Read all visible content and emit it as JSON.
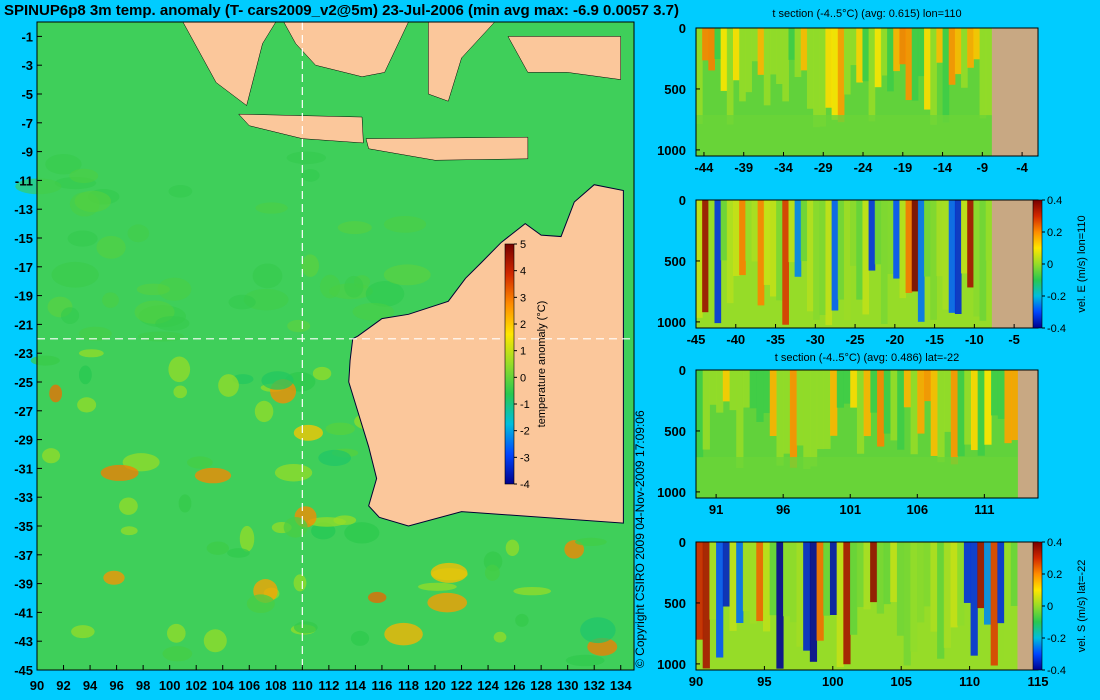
{
  "title": "SPINUP6p8 3m temp. anomaly (T- cars2009_v2@5m) 23-Jul-2006 (min avg max: -6.9 0.0057 3.7)",
  "copyright": "© Copyright CSIRO 2009   04-Nov-2009 17:09:06",
  "colors": {
    "background": "#00ccff",
    "land": "#fbc79b",
    "land_section": "#c8a883"
  },
  "chart_data": [
    {
      "type": "heatmap",
      "name": "map",
      "title": "",
      "xlabel": "",
      "ylabel": "",
      "xlim": [
        90,
        135
      ],
      "ylim": [
        -45,
        0
      ],
      "x_ticks": [
        "90",
        "92",
        "94",
        "96",
        "98",
        "100",
        "102",
        "104",
        "106",
        "108",
        "110",
        "112",
        "114",
        "116",
        "118",
        "120",
        "122",
        "124",
        "126",
        "128",
        "130",
        "132",
        "134"
      ],
      "y_ticks": [
        "-1",
        "-3",
        "-5",
        "-7",
        "-9",
        "-11",
        "-13",
        "-15",
        "-17",
        "-19",
        "-21",
        "-23",
        "-25",
        "-27",
        "-29",
        "-31",
        "-33",
        "-35",
        "-37",
        "-39",
        "-41",
        "-43",
        "-45"
      ],
      "section_lines": {
        "lon": 110,
        "lat": -22
      },
      "colorbar": {
        "label": "temperature anomaly (°C)",
        "min": -4,
        "max": 5,
        "ticks": [
          "5",
          "4",
          "3",
          "2",
          "1",
          "0",
          "-1",
          "-2",
          "-3",
          "-4"
        ]
      },
      "stats": {
        "min": -6.9,
        "avg": 0.0057,
        "max": 3.7
      }
    },
    {
      "type": "heatmap",
      "name": "t-section-lon110",
      "title": "t section (-4..5°C) (avg: 0.615) lon=110",
      "xlim": [
        -45,
        -2
      ],
      "ylim": [
        1050,
        0
      ],
      "x_ticks": [
        "-44",
        "-39",
        "-34",
        "-29",
        "-24",
        "-19",
        "-14",
        "-9",
        "-4"
      ],
      "y_ticks": [
        "0",
        "500",
        "1000"
      ],
      "land_start_x": -7.8
    },
    {
      "type": "heatmap",
      "name": "vel-e-section-lon110",
      "title": "",
      "xlim": [
        -45,
        -2
      ],
      "ylim": [
        1050,
        0
      ],
      "x_ticks": [
        "-45",
        "-40",
        "-35",
        "-30",
        "-25",
        "-20",
        "-15",
        "-10",
        "-5"
      ],
      "y_ticks": [
        "0",
        "500",
        "1000"
      ],
      "land_start_x": -7.8,
      "colorbar": {
        "label": "vel. E (m/s) lon=110",
        "min": -0.4,
        "max": 0.4,
        "ticks": [
          "0.4",
          "0.2",
          "0",
          "-0.2",
          "-0.4"
        ]
      }
    },
    {
      "type": "heatmap",
      "name": "t-section-lat-22",
      "title": "t section (-4..5°C) (avg: 0.486) lat=-22",
      "xlim": [
        89.5,
        115
      ],
      "ylim": [
        1050,
        0
      ],
      "x_ticks": [
        "91",
        "96",
        "101",
        "106",
        "111"
      ],
      "y_ticks": [
        "0",
        "500",
        "1000"
      ],
      "land_start_x": 113.5
    },
    {
      "type": "heatmap",
      "name": "vel-s-section-lat-22",
      "title": "",
      "xlim": [
        90,
        115
      ],
      "ylim": [
        1050,
        0
      ],
      "x_ticks": [
        "90",
        "95",
        "100",
        "105",
        "110",
        "115"
      ],
      "y_ticks": [
        "0",
        "500",
        "1000"
      ],
      "land_start_x": 113.5,
      "colorbar": {
        "label": "vel. S (m/s) lat=-22",
        "min": -0.4,
        "max": 0.4,
        "ticks": [
          "0.4",
          "0.2",
          "0",
          "-0.2",
          "-0.4"
        ]
      }
    }
  ]
}
